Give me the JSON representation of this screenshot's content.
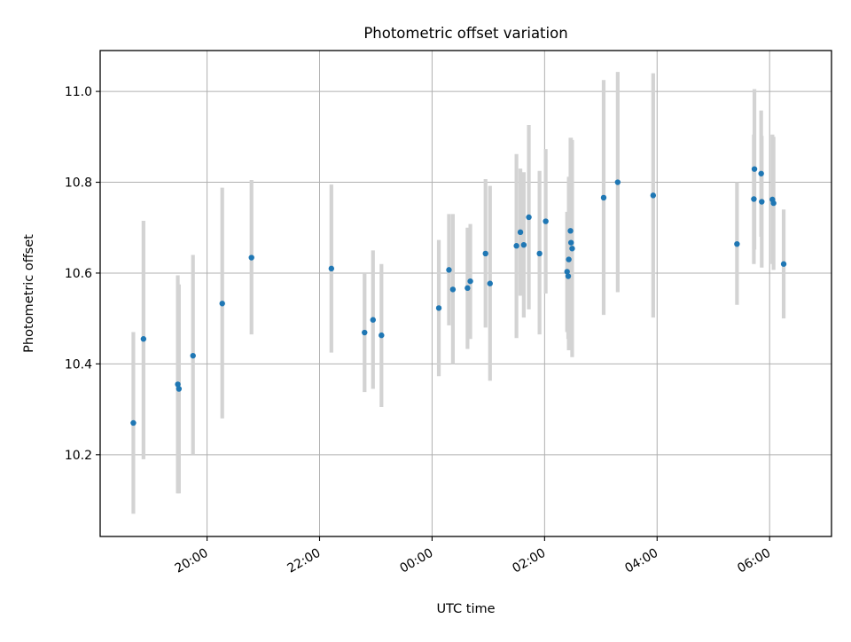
{
  "chart_data": {
    "type": "scatter",
    "title": "Photometric offset variation",
    "xlabel": "UTC time",
    "ylabel": "Photometric offset",
    "x_unit": "hours relative to 00:00 UTC",
    "xlim": [
      -5.9,
      7.1
    ],
    "ylim": [
      10.02,
      11.09
    ],
    "grid": true,
    "xticks": [
      {
        "value": -4,
        "label": "20:00"
      },
      {
        "value": -2,
        "label": "22:00"
      },
      {
        "value": 0,
        "label": "00:00"
      },
      {
        "value": 2,
        "label": "02:00"
      },
      {
        "value": 4,
        "label": "04:00"
      },
      {
        "value": 6,
        "label": "06:00"
      }
    ],
    "yticks": [
      {
        "value": 10.2,
        "label": "10.2"
      },
      {
        "value": 10.4,
        "label": "10.4"
      },
      {
        "value": 10.6,
        "label": "10.6"
      },
      {
        "value": 10.8,
        "label": "10.8"
      },
      {
        "value": 11.0,
        "label": "11.0"
      }
    ],
    "marker_color": "#1f77b4",
    "errorbar_color": "#d3d3d3",
    "points": [
      {
        "x": -5.31,
        "y": 10.27,
        "lo": 10.07,
        "hi": 10.47
      },
      {
        "x": -5.13,
        "y": 10.455,
        "lo": 10.19,
        "hi": 10.715
      },
      {
        "x": -4.52,
        "y": 10.355,
        "lo": 10.115,
        "hi": 10.595
      },
      {
        "x": -4.5,
        "y": 10.345,
        "lo": 10.115,
        "hi": 10.575
      },
      {
        "x": -4.25,
        "y": 10.418,
        "lo": 10.2,
        "hi": 10.64
      },
      {
        "x": -3.73,
        "y": 10.533,
        "lo": 10.28,
        "hi": 10.788
      },
      {
        "x": -3.21,
        "y": 10.634,
        "lo": 10.465,
        "hi": 10.805
      },
      {
        "x": -1.79,
        "y": 10.61,
        "lo": 10.425,
        "hi": 10.795
      },
      {
        "x": -1.2,
        "y": 10.469,
        "lo": 10.338,
        "hi": 10.6
      },
      {
        "x": -1.05,
        "y": 10.497,
        "lo": 10.345,
        "hi": 10.65
      },
      {
        "x": -0.9,
        "y": 10.463,
        "lo": 10.305,
        "hi": 10.62
      },
      {
        "x": 0.12,
        "y": 10.523,
        "lo": 10.373,
        "hi": 10.673
      },
      {
        "x": 0.3,
        "y": 10.607,
        "lo": 10.485,
        "hi": 10.73
      },
      {
        "x": 0.37,
        "y": 10.564,
        "lo": 10.4,
        "hi": 10.73
      },
      {
        "x": 0.63,
        "y": 10.567,
        "lo": 10.433,
        "hi": 10.7
      },
      {
        "x": 0.68,
        "y": 10.582,
        "lo": 10.455,
        "hi": 10.708
      },
      {
        "x": 0.95,
        "y": 10.643,
        "lo": 10.48,
        "hi": 10.807
      },
      {
        "x": 1.03,
        "y": 10.577,
        "lo": 10.363,
        "hi": 10.792
      },
      {
        "x": 1.5,
        "y": 10.66,
        "lo": 10.457,
        "hi": 10.862
      },
      {
        "x": 1.57,
        "y": 10.69,
        "lo": 10.55,
        "hi": 10.83
      },
      {
        "x": 1.63,
        "y": 10.662,
        "lo": 10.502,
        "hi": 10.822
      },
      {
        "x": 1.72,
        "y": 10.723,
        "lo": 10.52,
        "hi": 10.926
      },
      {
        "x": 1.91,
        "y": 10.643,
        "lo": 10.465,
        "hi": 10.825
      },
      {
        "x": 2.02,
        "y": 10.714,
        "lo": 10.555,
        "hi": 10.873
      },
      {
        "x": 2.4,
        "y": 10.603,
        "lo": 10.47,
        "hi": 10.735
      },
      {
        "x": 2.42,
        "y": 10.593,
        "lo": 10.455,
        "hi": 10.73
      },
      {
        "x": 2.43,
        "y": 10.63,
        "lo": 10.43,
        "hi": 10.812
      },
      {
        "x": 2.46,
        "y": 10.693,
        "lo": 10.488,
        "hi": 10.898
      },
      {
        "x": 2.47,
        "y": 10.667,
        "lo": 10.44,
        "hi": 10.898
      },
      {
        "x": 2.49,
        "y": 10.654,
        "lo": 10.415,
        "hi": 10.893
      },
      {
        "x": 3.05,
        "y": 10.766,
        "lo": 10.508,
        "hi": 11.025
      },
      {
        "x": 3.3,
        "y": 10.8,
        "lo": 10.558,
        "hi": 11.043
      },
      {
        "x": 3.93,
        "y": 10.771,
        "lo": 10.502,
        "hi": 11.04
      },
      {
        "x": 5.42,
        "y": 10.664,
        "lo": 10.53,
        "hi": 10.8
      },
      {
        "x": 5.72,
        "y": 10.763,
        "lo": 10.62,
        "hi": 10.905
      },
      {
        "x": 5.73,
        "y": 10.829,
        "lo": 10.652,
        "hi": 11.005
      },
      {
        "x": 5.85,
        "y": 10.819,
        "lo": 10.68,
        "hi": 10.958
      },
      {
        "x": 5.86,
        "y": 10.757,
        "lo": 10.612,
        "hi": 10.902
      },
      {
        "x": 6.05,
        "y": 10.762,
        "lo": 10.62,
        "hi": 10.905
      },
      {
        "x": 6.07,
        "y": 10.754,
        "lo": 10.607,
        "hi": 10.9
      },
      {
        "x": 6.25,
        "y": 10.62,
        "lo": 10.5,
        "hi": 10.74
      }
    ]
  }
}
